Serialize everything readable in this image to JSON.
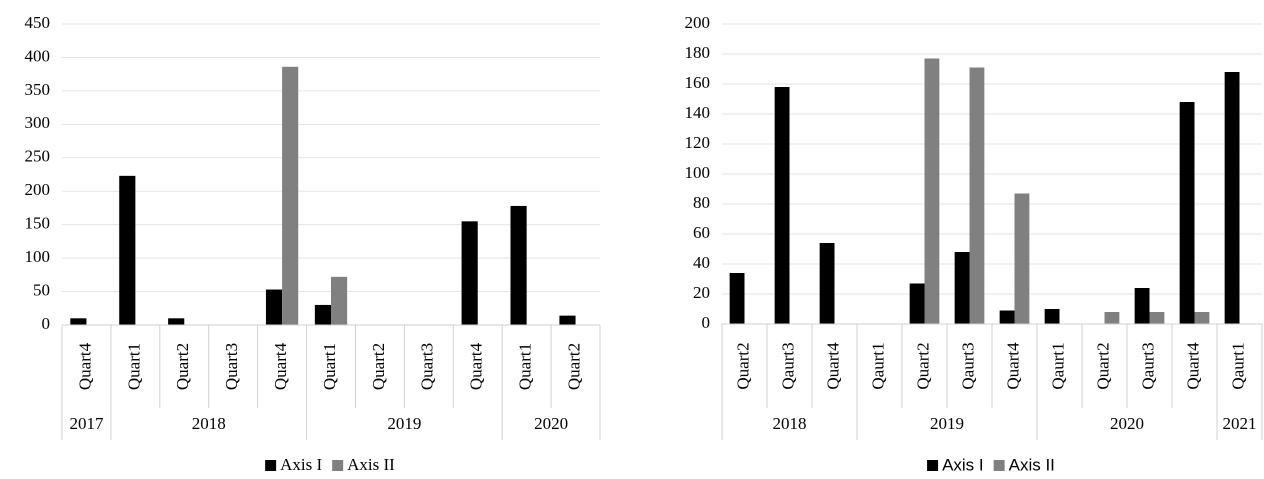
{
  "chart_data": [
    {
      "type": "bar",
      "font": "serif",
      "categories": [
        "Quart4",
        "Quart1",
        "Quart2",
        "Quart3",
        "Quart4",
        "Quart1",
        "Quart2",
        "Quart3",
        "Quart4",
        "Quart1",
        "Quart2"
      ],
      "x_groups": [
        "2017",
        "2018",
        null,
        null,
        null,
        "2019",
        null,
        null,
        null,
        "2020",
        null
      ],
      "series": [
        {
          "name": "Axis I",
          "color": "#000000",
          "values": [
            10,
            223,
            10,
            0,
            53,
            30,
            0,
            0,
            155,
            178,
            14
          ]
        },
        {
          "name": "Axis II",
          "color": "#808080",
          "values": [
            0,
            0,
            0,
            0,
            386,
            72,
            0,
            0,
            0,
            0,
            0
          ]
        }
      ],
      "ylim": [
        0,
        450
      ],
      "yticks": [
        0,
        50,
        100,
        150,
        200,
        250,
        300,
        350,
        400,
        450
      ],
      "grid": true,
      "legend": "bottom"
    },
    {
      "type": "bar",
      "font": "sans-serif",
      "categories": [
        "Quart2",
        "Qaurt3",
        "Quart4",
        "Qaurt1",
        "Quart2",
        "Qaurt3",
        "Quart4",
        "Qaurt1",
        "Quart2",
        "Qaurt3",
        "Quart4",
        "Qaurt1"
      ],
      "x_groups": [
        "2018",
        null,
        null,
        "2019",
        null,
        null,
        null,
        "2020",
        null,
        null,
        null,
        "2021"
      ],
      "series": [
        {
          "name": "Axis I",
          "color": "#000000",
          "values": [
            34,
            158,
            54,
            0,
            27,
            48,
            9,
            10,
            0,
            24,
            148,
            168
          ]
        },
        {
          "name": "Axis II",
          "color": "#808080",
          "values": [
            0,
            0,
            0,
            0,
            177,
            171,
            87,
            0,
            8,
            8,
            8,
            0
          ]
        }
      ],
      "ylim": [
        0,
        200
      ],
      "yticks": [
        0,
        20,
        40,
        60,
        80,
        100,
        120,
        140,
        160,
        180,
        200
      ],
      "grid": true,
      "legend": "bottom"
    }
  ]
}
